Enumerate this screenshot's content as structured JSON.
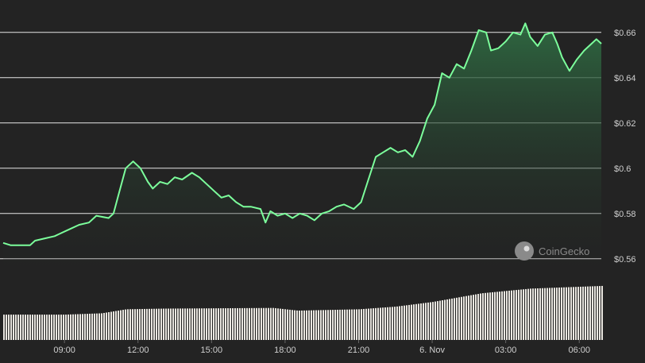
{
  "colors": {
    "background": "#232323",
    "line": "#8dc647",
    "line_bright": "#7CFF9C",
    "area_top": "#2f6b42",
    "grid": "#e6e6e6",
    "volume_bar": "#e9e6e0",
    "text": "#cfcfcf",
    "watermark": "#8a8a8a"
  },
  "watermark": {
    "text": "CoinGecko",
    "icon": "coingecko-gecko-icon"
  },
  "chart_data": {
    "type": "area",
    "grid": true,
    "legend": "none",
    "y_axis_position": "right",
    "ylim": [
      0.555,
      0.668
    ],
    "y_ticks": [
      {
        "value": 0.56,
        "label": "$0.56"
      },
      {
        "value": 0.58,
        "label": "$0.58"
      },
      {
        "value": 0.6,
        "label": "$0.6"
      },
      {
        "value": 0.62,
        "label": "$0.62"
      },
      {
        "value": 0.64,
        "label": "$0.64"
      },
      {
        "value": 0.66,
        "label": "$0.66"
      }
    ],
    "x_range_hours": [
      6.5,
      30.9
    ],
    "x_ticks": [
      {
        "hour": 9,
        "label": "09:00"
      },
      {
        "hour": 12,
        "label": "12:00"
      },
      {
        "hour": 15,
        "label": "15:00"
      },
      {
        "hour": 18,
        "label": "18:00"
      },
      {
        "hour": 21,
        "label": "21:00"
      },
      {
        "hour": 24,
        "label": "6. Nov"
      },
      {
        "hour": 27,
        "label": "03:00"
      },
      {
        "hour": 30,
        "label": "06:00"
      }
    ],
    "price_series": [
      {
        "h": 6.5,
        "v": 0.567
      },
      {
        "h": 6.8,
        "v": 0.566
      },
      {
        "h": 7.2,
        "v": 0.566
      },
      {
        "h": 7.6,
        "v": 0.566
      },
      {
        "h": 7.8,
        "v": 0.568
      },
      {
        "h": 8.2,
        "v": 0.569
      },
      {
        "h": 8.6,
        "v": 0.57
      },
      {
        "h": 8.8,
        "v": 0.571
      },
      {
        "h": 9.2,
        "v": 0.573
      },
      {
        "h": 9.6,
        "v": 0.575
      },
      {
        "h": 10.0,
        "v": 0.576
      },
      {
        "h": 10.3,
        "v": 0.579
      },
      {
        "h": 10.8,
        "v": 0.578
      },
      {
        "h": 11.0,
        "v": 0.58
      },
      {
        "h": 11.2,
        "v": 0.588
      },
      {
        "h": 11.5,
        "v": 0.6
      },
      {
        "h": 11.8,
        "v": 0.603
      },
      {
        "h": 12.1,
        "v": 0.6
      },
      {
        "h": 12.4,
        "v": 0.594
      },
      {
        "h": 12.6,
        "v": 0.591
      },
      {
        "h": 12.9,
        "v": 0.594
      },
      {
        "h": 13.2,
        "v": 0.593
      },
      {
        "h": 13.5,
        "v": 0.596
      },
      {
        "h": 13.8,
        "v": 0.595
      },
      {
        "h": 14.2,
        "v": 0.598
      },
      {
        "h": 14.5,
        "v": 0.596
      },
      {
        "h": 14.8,
        "v": 0.593
      },
      {
        "h": 15.1,
        "v": 0.59
      },
      {
        "h": 15.4,
        "v": 0.587
      },
      {
        "h": 15.7,
        "v": 0.588
      },
      {
        "h": 16.0,
        "v": 0.585
      },
      {
        "h": 16.3,
        "v": 0.583
      },
      {
        "h": 16.6,
        "v": 0.583
      },
      {
        "h": 17.0,
        "v": 0.582
      },
      {
        "h": 17.2,
        "v": 0.576
      },
      {
        "h": 17.4,
        "v": 0.581
      },
      {
        "h": 17.7,
        "v": 0.579
      },
      {
        "h": 18.0,
        "v": 0.58
      },
      {
        "h": 18.3,
        "v": 0.578
      },
      {
        "h": 18.6,
        "v": 0.58
      },
      {
        "h": 18.9,
        "v": 0.579
      },
      {
        "h": 19.2,
        "v": 0.577
      },
      {
        "h": 19.5,
        "v": 0.58
      },
      {
        "h": 19.8,
        "v": 0.581
      },
      {
        "h": 20.1,
        "v": 0.583
      },
      {
        "h": 20.4,
        "v": 0.584
      },
      {
        "h": 20.8,
        "v": 0.582
      },
      {
        "h": 21.1,
        "v": 0.585
      },
      {
        "h": 21.4,
        "v": 0.595
      },
      {
        "h": 21.7,
        "v": 0.605
      },
      {
        "h": 22.0,
        "v": 0.607
      },
      {
        "h": 22.3,
        "v": 0.609
      },
      {
        "h": 22.6,
        "v": 0.607
      },
      {
        "h": 22.9,
        "v": 0.608
      },
      {
        "h": 23.2,
        "v": 0.605
      },
      {
        "h": 23.5,
        "v": 0.612
      },
      {
        "h": 23.8,
        "v": 0.622
      },
      {
        "h": 24.1,
        "v": 0.628
      },
      {
        "h": 24.4,
        "v": 0.642
      },
      {
        "h": 24.7,
        "v": 0.64
      },
      {
        "h": 25.0,
        "v": 0.646
      },
      {
        "h": 25.3,
        "v": 0.644
      },
      {
        "h": 25.6,
        "v": 0.652
      },
      {
        "h": 25.9,
        "v": 0.661
      },
      {
        "h": 26.2,
        "v": 0.66
      },
      {
        "h": 26.4,
        "v": 0.652
      },
      {
        "h": 26.7,
        "v": 0.653
      },
      {
        "h": 27.0,
        "v": 0.656
      },
      {
        "h": 27.3,
        "v": 0.66
      },
      {
        "h": 27.6,
        "v": 0.659
      },
      {
        "h": 27.8,
        "v": 0.664
      },
      {
        "h": 28.0,
        "v": 0.658
      },
      {
        "h": 28.3,
        "v": 0.654
      },
      {
        "h": 28.6,
        "v": 0.659
      },
      {
        "h": 28.9,
        "v": 0.66
      },
      {
        "h": 29.1,
        "v": 0.655
      },
      {
        "h": 29.3,
        "v": 0.649
      },
      {
        "h": 29.6,
        "v": 0.643
      },
      {
        "h": 29.9,
        "v": 0.648
      },
      {
        "h": 30.2,
        "v": 0.652
      },
      {
        "h": 30.5,
        "v": 0.655
      },
      {
        "h": 30.7,
        "v": 0.657
      },
      {
        "h": 30.9,
        "v": 0.655
      }
    ],
    "volume_series": {
      "unit": "relative",
      "points": [
        {
          "h": 6.5,
          "v": 0.38
        },
        {
          "h": 9.0,
          "v": 0.38
        },
        {
          "h": 10.5,
          "v": 0.4
        },
        {
          "h": 11.5,
          "v": 0.46
        },
        {
          "h": 13.0,
          "v": 0.47
        },
        {
          "h": 17.5,
          "v": 0.48
        },
        {
          "h": 18.5,
          "v": 0.44
        },
        {
          "h": 21.0,
          "v": 0.46
        },
        {
          "h": 22.5,
          "v": 0.5
        },
        {
          "h": 24.0,
          "v": 0.57
        },
        {
          "h": 26.0,
          "v": 0.7
        },
        {
          "h": 28.0,
          "v": 0.77
        },
        {
          "h": 30.9,
          "v": 0.81
        }
      ]
    }
  }
}
